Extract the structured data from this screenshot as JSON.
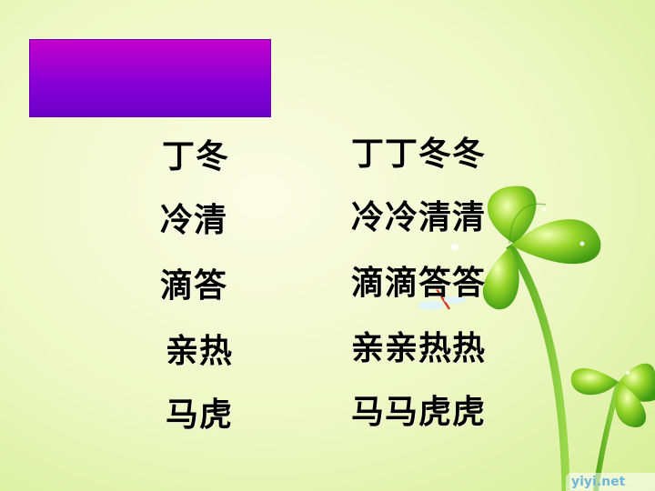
{
  "slide": {
    "title_color_top": "#c400cc",
    "title_color_bottom": "#6a00c8",
    "background": "#eef7c4"
  },
  "words": {
    "left": [
      "丁冬",
      "冷清",
      "滴答",
      "亲热",
      "马虎"
    ],
    "right": [
      "丁丁冬冬",
      "冷冷清清",
      "滴滴答答",
      "亲亲热热",
      "马马虎虎"
    ]
  },
  "decor": {
    "plant_icon": "four-leaf-clover-icon",
    "dragonfly_icon": "dragonfly-icon",
    "sparkle_icon": "sparkle-icon"
  },
  "watermark": "yiyi.net"
}
